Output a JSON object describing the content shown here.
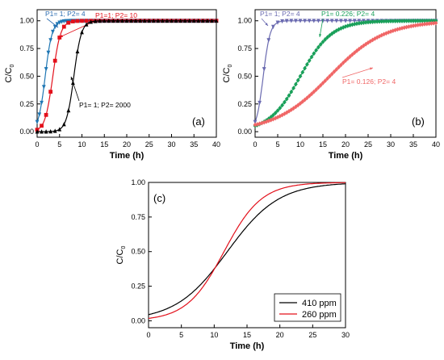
{
  "chart_data": [
    {
      "type": "line",
      "panel_label": "(a)",
      "xlabel": "Time (h)",
      "ylabel_main": "C/C",
      "ylabel_sub": "0",
      "xlim": [
        0,
        40
      ],
      "ylim": [
        -0.05,
        1.1
      ],
      "xticks": [
        "0",
        "5",
        "10",
        "15",
        "20",
        "25",
        "30",
        "35",
        "40"
      ],
      "yticks": [
        "0.00",
        "0.25",
        "0.50",
        "0.75",
        "1.00"
      ],
      "grid": false,
      "series": [
        {
          "name": "P1= 1; P2= 4",
          "color": "#1f77b4",
          "marker": "triangle-down",
          "label_color": "#2b6cb0",
          "k": 1.3,
          "t0": 1.8,
          "dense": true
        },
        {
          "name": "P1=1; P2= 10",
          "color": "#e3101b",
          "marker": "square",
          "label_color": "#e3101b",
          "k": 1.15,
          "t0": 3.5,
          "dense": false
        },
        {
          "name": "P1= 1; P2= 2000",
          "color": "#000000",
          "marker": "triangle-up",
          "label_color": "#000000",
          "k": 1.2,
          "t0": 8.2,
          "dense": false
        }
      ]
    },
    {
      "type": "line",
      "panel_label": "(b)",
      "xlabel": "Time (h)",
      "ylabel_main": "C/C",
      "ylabel_sub": "0",
      "xlim": [
        0,
        40
      ],
      "ylim": [
        -0.05,
        1.1
      ],
      "xticks": [
        "0",
        "5",
        "10",
        "15",
        "20",
        "25",
        "30",
        "35",
        "40"
      ],
      "yticks": [
        "0.00",
        "0.25",
        "0.50",
        "0.75",
        "1.00"
      ],
      "grid": false,
      "series": [
        {
          "name": "P1= 1; P2= 4",
          "color": "#6a6ab0",
          "marker": "triangle-down",
          "label_color": "#6a6ab0",
          "k": 1.3,
          "t0": 1.8
        },
        {
          "name": "P1= 0.226; P2= 4",
          "color": "#1aa05a",
          "marker": "diamond",
          "label_color": "#1aa05a",
          "k": 0.29,
          "t0": 10.0
        },
        {
          "name": "P1= 0.126; P2= 4",
          "color": "#f06666",
          "marker": "diamond",
          "label_color": "#f06666",
          "k": 0.165,
          "t0": 16.5
        }
      ]
    },
    {
      "type": "line",
      "panel_label": "(c)",
      "xlabel": "Time (h)",
      "ylabel_main": "C/C",
      "ylabel_sub": "0",
      "xlim": [
        0,
        30
      ],
      "ylim": [
        -0.05,
        1.0
      ],
      "xticks": [
        "0",
        "5",
        "10",
        "15",
        "20",
        "25",
        "30"
      ],
      "yticks": [
        "0.00",
        "0.25",
        "0.50",
        "0.75",
        "1.00"
      ],
      "grid": false,
      "legend": "bottom-right",
      "series": [
        {
          "name": "410 ppm",
          "color": "#000000",
          "k": 0.255,
          "t0": 12.0
        },
        {
          "name": "260 ppm",
          "color": "#e3101b",
          "k": 0.35,
          "t0": 11.5
        }
      ]
    }
  ]
}
